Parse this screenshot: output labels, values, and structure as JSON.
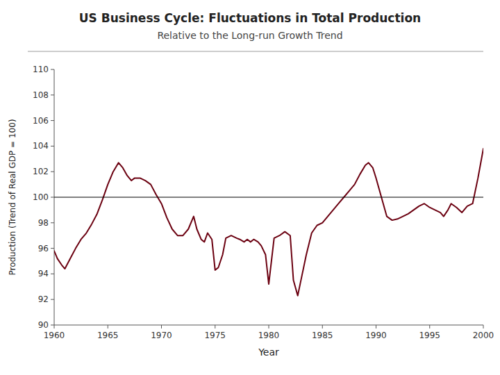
{
  "chart_data": {
    "type": "line",
    "title": "US Business Cycle: Fluctuations in Total Production",
    "subtitle": "Relative to the Long-run Growth Trend",
    "x_label": "Year",
    "y_label": "Production (Trend of Real GDP = 100)",
    "color": "#6b0010",
    "grid": false,
    "xlim": [
      1960,
      2000
    ],
    "ylim": [
      90,
      110
    ],
    "xticks": [
      1960,
      1965,
      1970,
      1975,
      1980,
      1985,
      1990,
      1995,
      2000
    ],
    "yticks": [
      90,
      92,
      94,
      96,
      98,
      100,
      102,
      104,
      106,
      108,
      110
    ],
    "trend_y": 100,
    "x": [
      1960.0,
      1960.3,
      1960.7,
      1961.0,
      1961.5,
      1962.0,
      1962.5,
      1963.0,
      1963.5,
      1964.0,
      1964.5,
      1965.0,
      1965.5,
      1966.0,
      1966.4,
      1966.8,
      1967.2,
      1967.5,
      1968.0,
      1968.5,
      1969.0,
      1969.5,
      1970.0,
      1970.5,
      1971.0,
      1971.5,
      1972.0,
      1972.5,
      1973.0,
      1973.3,
      1973.7,
      1974.0,
      1974.3,
      1974.7,
      1975.0,
      1975.3,
      1975.7,
      1976.0,
      1976.5,
      1977.0,
      1977.3,
      1977.7,
      1978.0,
      1978.3,
      1978.6,
      1979.0,
      1979.3,
      1979.7,
      1980.0,
      1980.5,
      1981.0,
      1981.5,
      1982.0,
      1982.3,
      1982.7,
      1983.0,
      1983.5,
      1984.0,
      1984.5,
      1985.0,
      1985.5,
      1986.0,
      1986.5,
      1987.0,
      1987.5,
      1988.0,
      1988.5,
      1989.0,
      1989.3,
      1989.7,
      1990.0,
      1990.5,
      1991.0,
      1991.5,
      1992.0,
      1992.5,
      1993.0,
      1993.5,
      1994.0,
      1994.5,
      1995.0,
      1995.5,
      1996.0,
      1996.3,
      1996.7,
      1997.0,
      1997.5,
      1998.0,
      1998.5,
      1999.0,
      1999.5,
      2000.0
    ],
    "values": [
      95.8,
      95.2,
      94.7,
      94.4,
      95.2,
      96.0,
      96.7,
      97.2,
      97.9,
      98.7,
      99.8,
      101.0,
      102.0,
      102.7,
      102.3,
      101.7,
      101.3,
      101.5,
      101.5,
      101.3,
      101.0,
      100.2,
      99.5,
      98.4,
      97.5,
      97.0,
      97.0,
      97.5,
      98.5,
      97.5,
      96.7,
      96.5,
      97.2,
      96.7,
      94.3,
      94.5,
      95.5,
      96.8,
      97.0,
      96.8,
      96.7,
      96.5,
      96.7,
      96.5,
      96.7,
      96.5,
      96.2,
      95.5,
      93.2,
      96.8,
      97.0,
      97.3,
      97.0,
      93.5,
      92.3,
      93.5,
      95.5,
      97.2,
      97.8,
      98.0,
      98.5,
      99.0,
      99.5,
      100.0,
      100.5,
      101.0,
      101.8,
      102.5,
      102.7,
      102.3,
      101.5,
      100.0,
      98.5,
      98.2,
      98.3,
      98.5,
      98.7,
      99.0,
      99.3,
      99.5,
      99.2,
      99.0,
      98.8,
      98.5,
      99.0,
      99.5,
      99.2,
      98.8,
      99.3,
      99.5,
      101.5,
      103.8
    ]
  }
}
